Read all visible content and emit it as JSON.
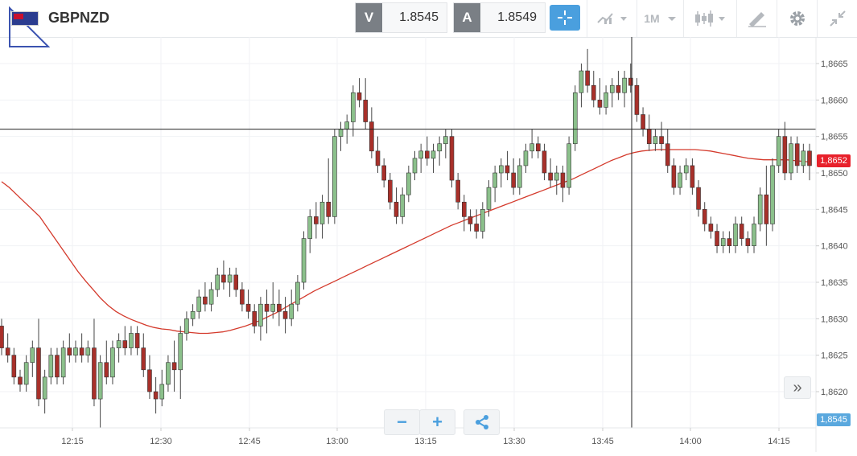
{
  "header": {
    "symbol": "GBPNZD",
    "bid_tag": "V",
    "bid_value": "1.8545",
    "ask_tag": "A",
    "ask_value": "1.8549",
    "timeframe": "1M"
  },
  "icons": {
    "crosshair": "crosshair-icon",
    "chart_type": "line-chart-icon",
    "candles": "candlestick-icon",
    "draw": "pencil-ruler-icon",
    "settings": "gear-icon",
    "fullscreen": "collapse-icon"
  },
  "zoom": {
    "minus": "−",
    "plus": "+"
  },
  "scroll_label": "»",
  "colors": {
    "bull": "#8bc08b",
    "bear": "#a8302a",
    "ma": "#d43a2c",
    "accent": "#4a9fde",
    "current_badge": "#e8212b",
    "bid_badge": "#5aa8de"
  },
  "price_axis": {
    "labels": [
      "1,8665",
      "1,8660",
      "1,8655",
      "1,8650",
      "1,8645",
      "1,8640",
      "1,8635",
      "1,8630",
      "1,8625",
      "1,8620"
    ],
    "current_price": "1,8652",
    "bid_price": "1,8545"
  },
  "time_axis": {
    "labels": [
      "12:15",
      "12:30",
      "12:45",
      "13:00",
      "13:15",
      "13:30",
      "13:45",
      "14:00",
      "14:15"
    ]
  },
  "chart_data": {
    "type": "candlestick",
    "symbol": "GBPNZD",
    "ylim": [
      1.8615,
      1.8668
    ],
    "interval": "1M",
    "crosshair_price": 1.8656,
    "crosshair_time": "13:50",
    "ohlc": [
      [
        1.8629,
        1.863,
        1.8625,
        1.8626
      ],
      [
        1.8626,
        1.8628,
        1.8624,
        1.8625
      ],
      [
        1.8625,
        1.8626,
        1.8621,
        1.8622
      ],
      [
        1.8622,
        1.8623,
        1.862,
        1.8621
      ],
      [
        1.8621,
        1.8625,
        1.862,
        1.8624
      ],
      [
        1.8624,
        1.8627,
        1.8622,
        1.8626
      ],
      [
        1.8626,
        1.863,
        1.8618,
        1.8619
      ],
      [
        1.8619,
        1.8623,
        1.8617,
        1.8622
      ],
      [
        1.8622,
        1.8626,
        1.8621,
        1.8625
      ],
      [
        1.8625,
        1.8626,
        1.8621,
        1.8622
      ],
      [
        1.8622,
        1.8627,
        1.8621,
        1.8626
      ],
      [
        1.8626,
        1.8628,
        1.8624,
        1.8625
      ],
      [
        1.8625,
        1.8627,
        1.8624,
        1.8626
      ],
      [
        1.8626,
        1.8628,
        1.8624,
        1.8625
      ],
      [
        1.8625,
        1.8627,
        1.8624,
        1.8626
      ],
      [
        1.8626,
        1.863,
        1.8618,
        1.8619
      ],
      [
        1.8619,
        1.8625,
        1.8615,
        1.8624
      ],
      [
        1.8624,
        1.8627,
        1.8621,
        1.8622
      ],
      [
        1.8622,
        1.8627,
        1.8621,
        1.8626
      ],
      [
        1.8626,
        1.8628,
        1.8624,
        1.8627
      ],
      [
        1.8627,
        1.8629,
        1.8625,
        1.8626
      ],
      [
        1.8626,
        1.8629,
        1.8625,
        1.8628
      ],
      [
        1.8628,
        1.8629,
        1.8625,
        1.8626
      ],
      [
        1.8626,
        1.8628,
        1.8622,
        1.8623
      ],
      [
        1.8623,
        1.8625,
        1.8619,
        1.862
      ],
      [
        1.862,
        1.8622,
        1.8617,
        1.8619
      ],
      [
        1.8619,
        1.8623,
        1.8618,
        1.8621
      ],
      [
        1.8621,
        1.8625,
        1.862,
        1.8624
      ],
      [
        1.8624,
        1.8627,
        1.862,
        1.8623
      ],
      [
        1.8623,
        1.8629,
        1.8619,
        1.8628
      ],
      [
        1.8628,
        1.8631,
        1.8627,
        1.863
      ],
      [
        1.863,
        1.8632,
        1.8629,
        1.8631
      ],
      [
        1.8631,
        1.8634,
        1.863,
        1.8633
      ],
      [
        1.8633,
        1.8635,
        1.8631,
        1.8632
      ],
      [
        1.8632,
        1.8635,
        1.8631,
        1.8634
      ],
      [
        1.8634,
        1.8637,
        1.8633,
        1.8636
      ],
      [
        1.8636,
        1.8638,
        1.8634,
        1.8635
      ],
      [
        1.8635,
        1.8637,
        1.8633,
        1.8636
      ],
      [
        1.8636,
        1.8637,
        1.8633,
        1.8634
      ],
      [
        1.8634,
        1.8635,
        1.8631,
        1.8632
      ],
      [
        1.8632,
        1.8634,
        1.863,
        1.8631
      ],
      [
        1.8631,
        1.8632,
        1.8628,
        1.8629
      ],
      [
        1.8629,
        1.8633,
        1.8627,
        1.8632
      ],
      [
        1.8632,
        1.8634,
        1.8628,
        1.8631
      ],
      [
        1.8631,
        1.8635,
        1.863,
        1.8632
      ],
      [
        1.8632,
        1.8634,
        1.8629,
        1.8631
      ],
      [
        1.8631,
        1.8633,
        1.8628,
        1.863
      ],
      [
        1.863,
        1.8634,
        1.8629,
        1.8632
      ],
      [
        1.8632,
        1.8636,
        1.8631,
        1.8635
      ],
      [
        1.8635,
        1.8642,
        1.8634,
        1.8641
      ],
      [
        1.8641,
        1.8645,
        1.8639,
        1.8644
      ],
      [
        1.8644,
        1.8646,
        1.8641,
        1.8643
      ],
      [
        1.8643,
        1.8647,
        1.8641,
        1.8646
      ],
      [
        1.8646,
        1.8652,
        1.8643,
        1.8644
      ],
      [
        1.8644,
        1.8656,
        1.8643,
        1.8655
      ],
      [
        1.8655,
        1.8657,
        1.8653,
        1.8656
      ],
      [
        1.8656,
        1.8658,
        1.8654,
        1.8657
      ],
      [
        1.8657,
        1.8662,
        1.8655,
        1.8661
      ],
      [
        1.8661,
        1.8663,
        1.8659,
        1.866
      ],
      [
        1.866,
        1.8663,
        1.8656,
        1.8657
      ],
      [
        1.8657,
        1.8659,
        1.8652,
        1.8653
      ],
      [
        1.8653,
        1.8655,
        1.865,
        1.8651
      ],
      [
        1.8651,
        1.8652,
        1.8648,
        1.8649
      ],
      [
        1.8649,
        1.865,
        1.8645,
        1.8646
      ],
      [
        1.8646,
        1.8648,
        1.8643,
        1.8644
      ],
      [
        1.8644,
        1.8648,
        1.8643,
        1.8647
      ],
      [
        1.8647,
        1.8651,
        1.8646,
        1.865
      ],
      [
        1.865,
        1.8653,
        1.8649,
        1.8652
      ],
      [
        1.8652,
        1.8654,
        1.865,
        1.8653
      ],
      [
        1.8653,
        1.8655,
        1.8651,
        1.8652
      ],
      [
        1.8652,
        1.8654,
        1.865,
        1.8653
      ],
      [
        1.8653,
        1.8655,
        1.8651,
        1.8654
      ],
      [
        1.8654,
        1.8656,
        1.8652,
        1.8655
      ],
      [
        1.8655,
        1.8656,
        1.8648,
        1.8649
      ],
      [
        1.8649,
        1.865,
        1.8645,
        1.8646
      ],
      [
        1.8646,
        1.8647,
        1.8642,
        1.8644
      ],
      [
        1.8644,
        1.8645,
        1.8642,
        1.8643
      ],
      [
        1.8643,
        1.8645,
        1.8641,
        1.8642
      ],
      [
        1.8642,
        1.8646,
        1.8641,
        1.8645
      ],
      [
        1.8645,
        1.8649,
        1.8644,
        1.8648
      ],
      [
        1.8648,
        1.8651,
        1.8646,
        1.865
      ],
      [
        1.865,
        1.8652,
        1.8648,
        1.8651
      ],
      [
        1.8651,
        1.8653,
        1.8649,
        1.865
      ],
      [
        1.865,
        1.8652,
        1.8647,
        1.8648
      ],
      [
        1.8648,
        1.8652,
        1.8647,
        1.8651
      ],
      [
        1.8651,
        1.8654,
        1.865,
        1.8653
      ],
      [
        1.8653,
        1.8656,
        1.8652,
        1.8654
      ],
      [
        1.8654,
        1.8655,
        1.8652,
        1.8653
      ],
      [
        1.8653,
        1.8654,
        1.8649,
        1.865
      ],
      [
        1.865,
        1.8652,
        1.8648,
        1.8649
      ],
      [
        1.8649,
        1.8651,
        1.8647,
        1.865
      ],
      [
        1.865,
        1.8651,
        1.8646,
        1.8648
      ],
      [
        1.8648,
        1.8655,
        1.8647,
        1.8654
      ],
      [
        1.8654,
        1.8662,
        1.8653,
        1.8661
      ],
      [
        1.8661,
        1.8665,
        1.8659,
        1.8664
      ],
      [
        1.8664,
        1.8667,
        1.8661,
        1.8662
      ],
      [
        1.8662,
        1.8664,
        1.8659,
        1.866
      ],
      [
        1.866,
        1.8663,
        1.8658,
        1.8659
      ],
      [
        1.8659,
        1.8662,
        1.8658,
        1.8661
      ],
      [
        1.8661,
        1.8663,
        1.8659,
        1.8662
      ],
      [
        1.8662,
        1.8664,
        1.866,
        1.8661
      ],
      [
        1.8661,
        1.8664,
        1.8659,
        1.8663
      ],
      [
        1.8663,
        1.8665,
        1.8661,
        1.8662
      ],
      [
        1.8662,
        1.8663,
        1.8657,
        1.8658
      ],
      [
        1.8658,
        1.8659,
        1.8655,
        1.8656
      ],
      [
        1.8656,
        1.8658,
        1.8653,
        1.8654
      ],
      [
        1.8654,
        1.8656,
        1.8653,
        1.8655
      ],
      [
        1.8655,
        1.8657,
        1.8653,
        1.8654
      ],
      [
        1.8654,
        1.8656,
        1.865,
        1.8651
      ],
      [
        1.8651,
        1.8652,
        1.8647,
        1.8648
      ],
      [
        1.8648,
        1.8651,
        1.8647,
        1.865
      ],
      [
        1.865,
        1.8652,
        1.8649,
        1.8651
      ],
      [
        1.8651,
        1.8652,
        1.8647,
        1.8648
      ],
      [
        1.8648,
        1.8649,
        1.8644,
        1.8645
      ],
      [
        1.8645,
        1.8646,
        1.8642,
        1.8643
      ],
      [
        1.8643,
        1.8644,
        1.8641,
        1.8642
      ],
      [
        1.8642,
        1.8643,
        1.8639,
        1.864
      ],
      [
        1.864,
        1.8642,
        1.8639,
        1.8641
      ],
      [
        1.8641,
        1.8642,
        1.8639,
        1.864
      ],
      [
        1.864,
        1.8644,
        1.8639,
        1.8643
      ],
      [
        1.8643,
        1.8644,
        1.864,
        1.8641
      ],
      [
        1.8641,
        1.8642,
        1.8639,
        1.864
      ],
      [
        1.864,
        1.8644,
        1.8639,
        1.8643
      ],
      [
        1.8643,
        1.8648,
        1.8642,
        1.8647
      ],
      [
        1.8647,
        1.8651,
        1.864,
        1.8643
      ],
      [
        1.8643,
        1.8652,
        1.8642,
        1.8651
      ],
      [
        1.8651,
        1.8656,
        1.865,
        1.8655
      ],
      [
        1.8655,
        1.8657,
        1.8649,
        1.865
      ],
      [
        1.865,
        1.8655,
        1.8649,
        1.8654
      ],
      [
        1.8654,
        1.8655,
        1.865,
        1.8651
      ],
      [
        1.8651,
        1.8654,
        1.865,
        1.8653
      ],
      [
        1.8653,
        1.8654,
        1.8649,
        1.8651
      ]
    ],
    "moving_average": [
      1.86488,
      1.8648,
      1.8647,
      1.8646,
      1.8645,
      1.8644,
      1.86425,
      1.8641,
      1.86395,
      1.8638,
      1.86365,
      1.86352,
      1.8634,
      1.86328,
      1.86318,
      1.8631,
      1.86304,
      1.86299,
      1.86295,
      1.86291,
      1.86288,
      1.86286,
      1.86285,
      1.86283,
      1.86282,
      1.86281,
      1.8628,
      1.8628,
      1.86281,
      1.86282,
      1.86284,
      1.86287,
      1.8629,
      1.86294,
      1.86298,
      1.86303,
      1.86308,
      1.86314,
      1.8632,
      1.86326,
      1.86332,
      1.86338,
      1.86343,
      1.86348,
      1.86353,
      1.86358,
      1.86363,
      1.86368,
      1.86373,
      1.86378,
      1.86383,
      1.86388,
      1.86393,
      1.86398,
      1.86403,
      1.86408,
      1.86413,
      1.86418,
      1.86423,
      1.86428,
      1.86432,
      1.86436,
      1.8644,
      1.86444,
      1.86448,
      1.86452,
      1.86456,
      1.8646,
      1.86464,
      1.86468,
      1.86472,
      1.86476,
      1.8648,
      1.86484,
      1.86488,
      1.86492,
      1.86497,
      1.86502,
      1.86507,
      1.86512,
      1.86517,
      1.86521,
      1.86525,
      1.86528,
      1.8653,
      1.86531,
      1.86532,
      1.86532,
      1.86532,
      1.86532,
      1.86532,
      1.86532,
      1.86531,
      1.8653,
      1.86528,
      1.86526,
      1.86524,
      1.86522,
      1.8652,
      1.86519,
      1.86518,
      1.86518,
      1.86518,
      1.86518,
      1.86517,
      1.86516,
      1.86515
    ]
  }
}
